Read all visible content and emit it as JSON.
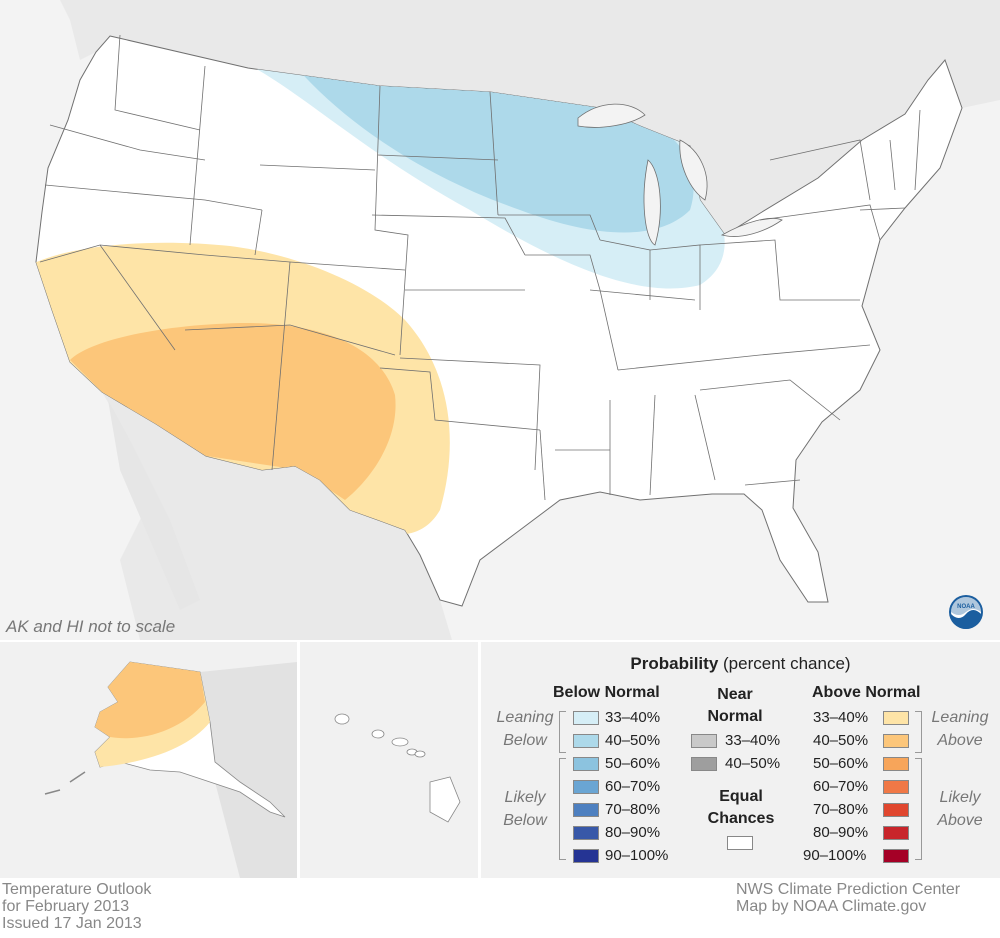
{
  "map": {
    "alaska_hawaii_note": "AK and HI not to scale",
    "colors": {
      "land": "#ffffff",
      "neighbors": "#e9e9e9",
      "water": "#f3f3f3",
      "state_border": "#707070",
      "below_33_40": "#d6eef6",
      "below_40_50": "#add9ea",
      "above_33_40": "#fee4a7",
      "above_40_50": "#fcc67a"
    },
    "logo": "noaa-logo",
    "logo_text": "NOAA"
  },
  "legend": {
    "title_bold": "Probability",
    "title_rest": " (percent chance)",
    "below_normal": {
      "heading": "Below Normal",
      "leaning_label": [
        "Leaning",
        "Below"
      ],
      "likely_label": [
        "Likely",
        "Below"
      ],
      "items": [
        {
          "label": "33–40%",
          "color": "#d6eef6"
        },
        {
          "label": "40–50%",
          "color": "#add9ea"
        },
        {
          "label": "50–60%",
          "color": "#8cc3df"
        },
        {
          "label": "60–70%",
          "color": "#6aa5d3"
        },
        {
          "label": "70–80%",
          "color": "#4e80c0"
        },
        {
          "label": "80–90%",
          "color": "#3858a8"
        },
        {
          "label": "90–100%",
          "color": "#253494"
        }
      ]
    },
    "near_normal": {
      "heading_line1": "Near",
      "heading_line2": "Normal",
      "items": [
        {
          "label": "33–40%",
          "color": "#c9c9c9"
        },
        {
          "label": "40–50%",
          "color": "#9e9e9e"
        }
      ]
    },
    "equal_chances": {
      "line1": "Equal",
      "line2": "Chances",
      "color": "#ffffff"
    },
    "above_normal": {
      "heading": "Above Normal",
      "leaning_label": [
        "Leaning",
        "Above"
      ],
      "likely_label": [
        "Likely",
        "Above"
      ],
      "items": [
        {
          "label": "33–40%",
          "color": "#fee4a7"
        },
        {
          "label": "40–50%",
          "color": "#fcc67a"
        },
        {
          "label": "50–60%",
          "color": "#f7a55a"
        },
        {
          "label": "60–70%",
          "color": "#f07846"
        },
        {
          "label": "70–80%",
          "color": "#e0472f"
        },
        {
          "label": "80–90%",
          "color": "#c8252b"
        },
        {
          "label": "90–100%",
          "color": "#a50026"
        }
      ]
    }
  },
  "footer": {
    "left_line1": "Temperature Outlook",
    "left_line2": "for February 2013",
    "left_line3": "Issued 17 Jan 2013",
    "right_line1": "NWS Climate Prediction Center",
    "right_line2": "Map by NOAA Climate.gov"
  }
}
